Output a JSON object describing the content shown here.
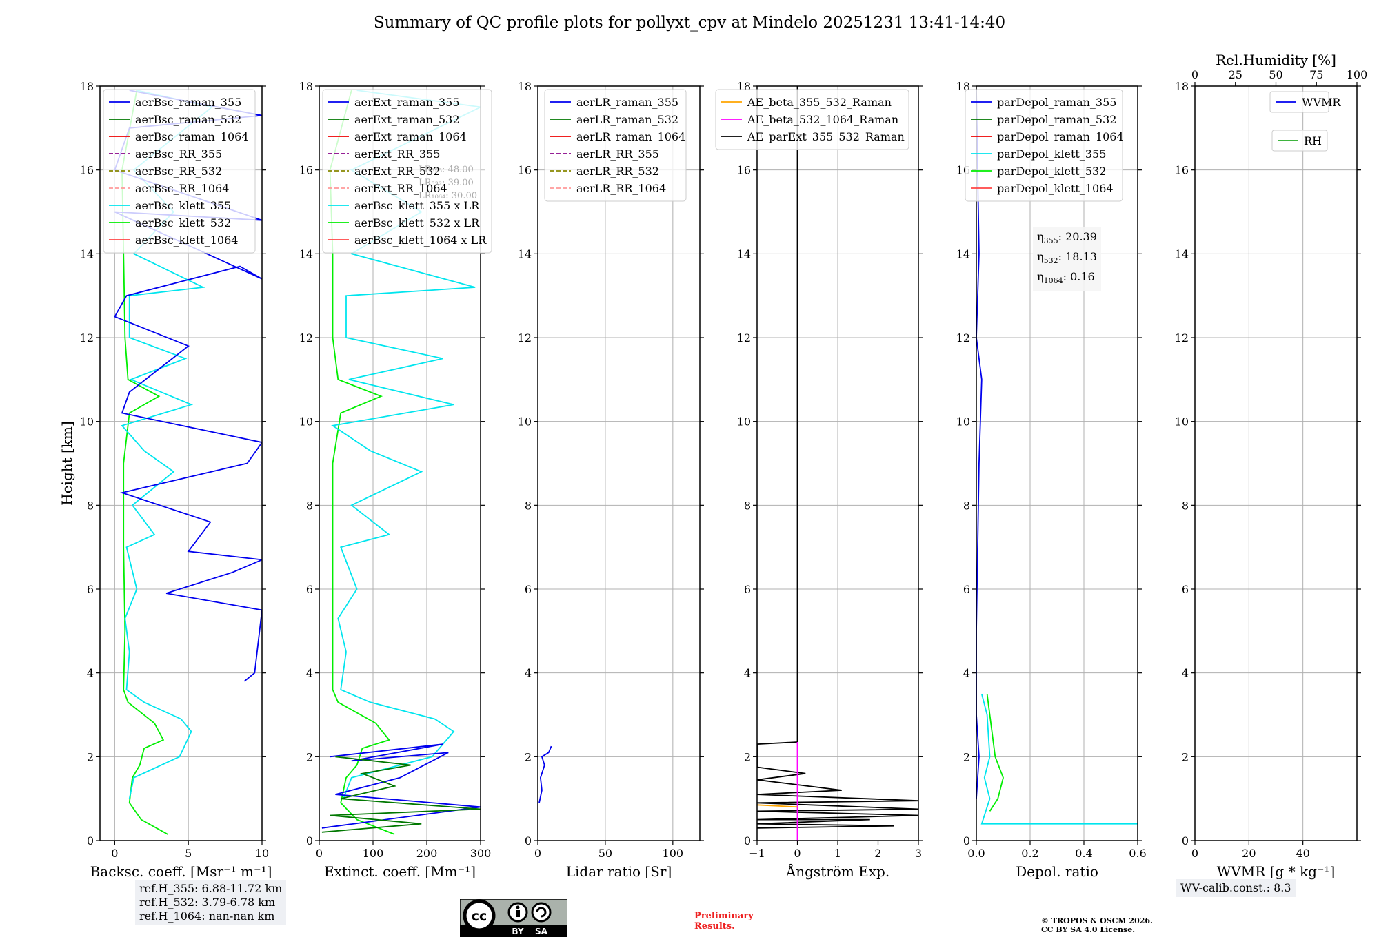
{
  "figure": {
    "title": "Summary of QC profile plots for pollyxt_cpv at Mindelo 20251231 13:41-14:40",
    "ylabel": "Height [km]",
    "y_ticks": [
      "0",
      "2",
      "4",
      "6",
      "8",
      "10",
      "12",
      "14",
      "16",
      "18"
    ]
  },
  "chart_data": [
    {
      "type": "line",
      "panel": "backscatter",
      "xlabel": "Backsc. coeff. [Msr⁻¹ m⁻¹]",
      "xlim": [
        -1,
        10
      ],
      "ylim": [
        0,
        18
      ],
      "x_ticks": [
        "0",
        "5",
        "10"
      ],
      "legend": [
        "aerBsc_raman_355",
        "aerBsc_raman_532",
        "aerBsc_raman_1064",
        "aerBsc_RR_355",
        "aerBsc_RR_532",
        "aerBsc_RR_1064",
        "aerBsc_klett_355",
        "aerBsc_klett_532",
        "aerBsc_klett_1064"
      ],
      "series": [
        {
          "name": "aerBsc_klett_532",
          "color": "#00ee00",
          "points": [
            [
              3.6,
              0.15
            ],
            [
              1.8,
              0.5
            ],
            [
              1.0,
              0.9
            ],
            [
              1.2,
              1.5
            ],
            [
              1.7,
              1.8
            ],
            [
              2.0,
              2.2
            ],
            [
              3.3,
              2.4
            ],
            [
              2.7,
              2.8
            ],
            [
              0.9,
              3.3
            ],
            [
              0.6,
              3.6
            ],
            [
              0.7,
              5
            ],
            [
              0.6,
              7
            ],
            [
              0.6,
              9
            ],
            [
              1.0,
              10.2
            ],
            [
              3.0,
              10.6
            ],
            [
              0.9,
              11
            ],
            [
              0.7,
              12
            ],
            [
              0.6,
              14
            ],
            [
              0.5,
              16
            ],
            [
              1.5,
              17.9
            ]
          ]
        },
        {
          "name": "aerBsc_klett_355",
          "color": "#00e5ee",
          "points": [
            [
              1.0,
              1.0
            ],
            [
              1.3,
              1.5
            ],
            [
              4.4,
              2.0
            ],
            [
              5.2,
              2.6
            ],
            [
              4.5,
              2.9
            ],
            [
              2.0,
              3.3
            ],
            [
              0.8,
              3.6
            ],
            [
              1.0,
              4.5
            ],
            [
              0.7,
              5.3
            ],
            [
              1.5,
              6
            ],
            [
              0.8,
              7
            ],
            [
              2.7,
              7.3
            ],
            [
              1.2,
              8
            ],
            [
              4.0,
              8.8
            ],
            [
              2.0,
              9.3
            ],
            [
              0.5,
              9.9
            ],
            [
              5.2,
              10.4
            ],
            [
              1.1,
              11
            ],
            [
              4.8,
              11.5
            ],
            [
              1.0,
              12
            ],
            [
              1.0,
              13
            ],
            [
              6.0,
              13.2
            ],
            [
              1.3,
              14
            ],
            [
              4.0,
              15
            ],
            [
              1.3,
              16
            ],
            [
              6.6,
              17.5
            ],
            [
              1.5,
              17.9
            ]
          ]
        },
        {
          "name": "aerBsc_raman_355",
          "color": "#0000ee",
          "points": [
            [
              8.8,
              3.8
            ],
            [
              9.5,
              4.0
            ],
            [
              10.0,
              5.5
            ],
            [
              3.5,
              5.9
            ],
            [
              8.0,
              6.4
            ],
            [
              10.0,
              6.7
            ],
            [
              5.0,
              6.9
            ],
            [
              6.5,
              7.6
            ],
            [
              0.5,
              8.3
            ],
            [
              9.0,
              9.0
            ],
            [
              10.0,
              9.5
            ],
            [
              0.5,
              10.2
            ],
            [
              1.0,
              10.7
            ],
            [
              5.0,
              11.8
            ],
            [
              0.0,
              12.5
            ],
            [
              0.8,
              13
            ],
            [
              8.5,
              13.7
            ],
            [
              10.0,
              13.4
            ],
            [
              0,
              15
            ],
            [
              10,
              14.8
            ],
            [
              0,
              16
            ],
            [
              1.0,
              17.0
            ],
            [
              10,
              17.3
            ],
            [
              1.0,
              17.9
            ]
          ]
        }
      ]
    },
    {
      "type": "line",
      "panel": "extinction",
      "xlabel": "Extinct. coeff. [Mm⁻¹]",
      "xlim": [
        0,
        300
      ],
      "ylim": [
        0,
        18
      ],
      "x_ticks": [
        "0",
        "100",
        "200",
        "300"
      ],
      "legend": [
        "aerExt_raman_355",
        "aerExt_raman_532",
        "aerExt_raman_1064",
        "aerExt_RR_355",
        "aerExt_RR_532",
        "aerExt_RR_1064",
        "aerBsc_klett_355 x LR",
        "aerBsc_klett_532 x LR",
        "aerBsc_klett_1064 x LR"
      ],
      "lidar_ratios": [
        "LR₃₅₅: 48.00",
        "LR₅₃₂: 39.00",
        "LR₁₀₆₄: 30.00"
      ],
      "series": [
        {
          "name": "aerBsc_klett_532 x LR",
          "color": "#00ee00",
          "points": [
            [
              140,
              0.15
            ],
            [
              70,
              0.5
            ],
            [
              40,
              0.9
            ],
            [
              50,
              1.5
            ],
            [
              70,
              1.8
            ],
            [
              80,
              2.2
            ],
            [
              130,
              2.4
            ],
            [
              105,
              2.8
            ],
            [
              35,
              3.3
            ],
            [
              25,
              3.6
            ],
            [
              25,
              5
            ],
            [
              25,
              7
            ],
            [
              25,
              9
            ],
            [
              40,
              10.2
            ],
            [
              115,
              10.6
            ],
            [
              35,
              11
            ],
            [
              25,
              12
            ],
            [
              25,
              14
            ],
            [
              20,
              16
            ],
            [
              60,
              17.9
            ]
          ]
        },
        {
          "name": "aerBsc_klett_355 x LR",
          "color": "#00e5ee",
          "points": [
            [
              45,
              1.0
            ],
            [
              60,
              1.5
            ],
            [
              210,
              2.0
            ],
            [
              250,
              2.6
            ],
            [
              215,
              2.9
            ],
            [
              95,
              3.3
            ],
            [
              40,
              3.6
            ],
            [
              50,
              4.5
            ],
            [
              35,
              5.3
            ],
            [
              70,
              6
            ],
            [
              40,
              7
            ],
            [
              130,
              7.3
            ],
            [
              60,
              8
            ],
            [
              190,
              8.8
            ],
            [
              95,
              9.3
            ],
            [
              25,
              9.9
            ],
            [
              250,
              10.4
            ],
            [
              55,
              11
            ],
            [
              230,
              11.5
            ],
            [
              50,
              12
            ],
            [
              50,
              13
            ],
            [
              290,
              13.2
            ],
            [
              60,
              14
            ],
            [
              190,
              15
            ],
            [
              60,
              16
            ],
            [
              300,
              17.5
            ],
            [
              70,
              17.9
            ]
          ]
        },
        {
          "name": "aerExt_raman_355",
          "color": "#0000ee",
          "points": [
            [
              5,
              0.3
            ],
            [
              300,
              0.8
            ],
            [
              30,
              1.1
            ],
            [
              150,
              1.5
            ],
            [
              240,
              2.1
            ],
            [
              60,
              1.9
            ],
            [
              230,
              2.3
            ],
            [
              20,
              2.0
            ]
          ]
        },
        {
          "name": "aerExt_raman_532",
          "color": "#007700",
          "points": [
            [
              5,
              0.2
            ],
            [
              190,
              0.4
            ],
            [
              20,
              0.6
            ],
            [
              300,
              0.75
            ],
            [
              40,
              1.0
            ],
            [
              140,
              1.3
            ],
            [
              80,
              1.6
            ],
            [
              170,
              1.8
            ],
            [
              30,
              2.0
            ]
          ]
        }
      ]
    },
    {
      "type": "line",
      "panel": "lidar_ratio",
      "xlabel": "Lidar ratio [Sr]",
      "xlim": [
        0,
        120
      ],
      "ylim": [
        0,
        18
      ],
      "x_ticks": [
        "0",
        "50",
        "100"
      ],
      "legend": [
        "aerLR_raman_355",
        "aerLR_raman_532",
        "aerLR_raman_1064",
        "aerLR_RR_355",
        "aerLR_RR_532",
        "aerLR_RR_1064"
      ],
      "series": [
        {
          "name": "aerLR_raman_355",
          "color": "#0000ee",
          "points": [
            [
              1,
              0.9
            ],
            [
              3,
              1.2
            ],
            [
              2,
              1.5
            ],
            [
              5,
              1.8
            ],
            [
              3,
              2.0
            ],
            [
              8,
              2.1
            ],
            [
              10,
              2.25
            ]
          ]
        }
      ]
    },
    {
      "type": "line",
      "panel": "angstrom",
      "xlabel": "Ångström Exp.",
      "xlim": [
        -1,
        3
      ],
      "ylim": [
        0,
        18
      ],
      "x_ticks": [
        "−1",
        "0",
        "1",
        "2",
        "3"
      ],
      "legend": [
        "AE_beta_355_532_Raman",
        "AE_beta_532_1064_Raman",
        "AE_parExt_355_532_Raman"
      ],
      "series": [
        {
          "name": "AE_parExt_355_532_Raman",
          "color": "#000000",
          "points": [
            [
              0,
              18
            ],
            [
              0,
              2.35
            ],
            [
              -1,
              2.3
            ],
            [
              -1,
              1.75
            ],
            [
              0.2,
              1.6
            ],
            [
              -1,
              1.45
            ],
            [
              1.1,
              1.2
            ],
            [
              -1,
              1.1
            ],
            [
              3,
              0.95
            ],
            [
              -1,
              0.9
            ],
            [
              3,
              0.75
            ],
            [
              -1,
              0.7
            ],
            [
              3,
              0.6
            ],
            [
              -1,
              0.5
            ],
            [
              1.8,
              0.5
            ],
            [
              -1,
              0.4
            ],
            [
              2.4,
              0.35
            ],
            [
              -1,
              0.3
            ]
          ]
        },
        {
          "name": "AE_beta_532_1064_Raman",
          "color": "#ff00ff",
          "points": [
            [
              0,
              2.35
            ],
            [
              0,
              0
            ]
          ]
        },
        {
          "name": "AE_beta_355_532_Raman",
          "color": "#ffa500",
          "points": [
            [
              -1,
              0.85
            ],
            [
              0,
              0.8
            ]
          ]
        }
      ]
    },
    {
      "type": "line",
      "panel": "depolarization",
      "xlabel": "Depol. ratio",
      "xlim": [
        0,
        0.6
      ],
      "ylim": [
        0,
        18
      ],
      "x_ticks": [
        "0.0",
        "0.2",
        "0.4",
        "0.6"
      ],
      "legend": [
        "parDepol_raman_355",
        "parDepol_raman_532",
        "parDepol_raman_1064",
        "parDepol_klett_355",
        "parDepol_klett_532",
        "parDepol_klett_1064"
      ],
      "eta": [
        "20.39",
        "18.13",
        "0.16"
      ],
      "series": [
        {
          "name": "parDepol_klett_355",
          "color": "#00e5ee",
          "points": [
            [
              0.6,
              0.4
            ],
            [
              0.02,
              0.4
            ],
            [
              0.05,
              1.0
            ],
            [
              0.03,
              1.5
            ],
            [
              0.05,
              2.0
            ],
            [
              0.04,
              3.0
            ],
            [
              0.02,
              3.5
            ]
          ]
        },
        {
          "name": "parDepol_klett_532",
          "color": "#00ee00",
          "points": [
            [
              0.05,
              0.7
            ],
            [
              0.08,
              1.0
            ],
            [
              0.1,
              1.5
            ],
            [
              0.07,
              2.0
            ],
            [
              0.05,
              3.0
            ],
            [
              0.04,
              3.5
            ]
          ]
        },
        {
          "name": "parDepol_raman_355",
          "color": "#0000ee",
          "points": [
            [
              0.0,
              1.0
            ],
            [
              0.01,
              2.0
            ],
            [
              0.0,
              3.0
            ],
            [
              0.0,
              5.0
            ],
            [
              0.01,
              9.0
            ],
            [
              0.02,
              11.0
            ],
            [
              0.0,
              12
            ],
            [
              0.01,
              14
            ],
            [
              0.0,
              17.9
            ]
          ]
        }
      ]
    },
    {
      "type": "line",
      "panel": "wvmr",
      "xlabel": "WVMR [g * kg⁻¹]",
      "xlim": [
        0,
        60
      ],
      "ylim": [
        0,
        18
      ],
      "x_ticks": [
        "0",
        "20",
        "40"
      ],
      "top_axis_label": "Rel.Humidity [%]",
      "top_ticks": [
        "0",
        "25",
        "50",
        "75",
        "100"
      ],
      "legend": [
        "WVMR",
        "RH"
      ],
      "series": []
    }
  ],
  "footer": {
    "ref_heights": [
      "ref.H_355: 6.88-11.72 km",
      "ref.H_532: 3.79-6.78 km",
      "ref.H_1064: nan-nan km"
    ],
    "wv_calib": "WV-calib.const.: 8.3",
    "preliminary_line1": "Preliminary",
    "preliminary_line2": "Results.",
    "copyright_line1": "© TROPOS & OSCM 2026.",
    "copyright_line2": "CC BY SA 4.0 License.",
    "license_badge_by": "BY",
    "license_badge_sa": "SA"
  },
  "colors": {
    "raman_355": "#0000ee",
    "raman_532": "#007700",
    "raman_1064": "#ee0000",
    "rr_355": "#880088",
    "rr_532": "#888800",
    "rr_1064": "#ff9999",
    "klett_355": "#00e5ee",
    "klett_532": "#00ee00",
    "klett_1064": "#ff4444",
    "ae_355_532": "#ffa500",
    "ae_532_1064": "#ff00ff",
    "ae_ext": "#000000",
    "wvmr": "#0000ee",
    "rh": "#22aa22"
  }
}
